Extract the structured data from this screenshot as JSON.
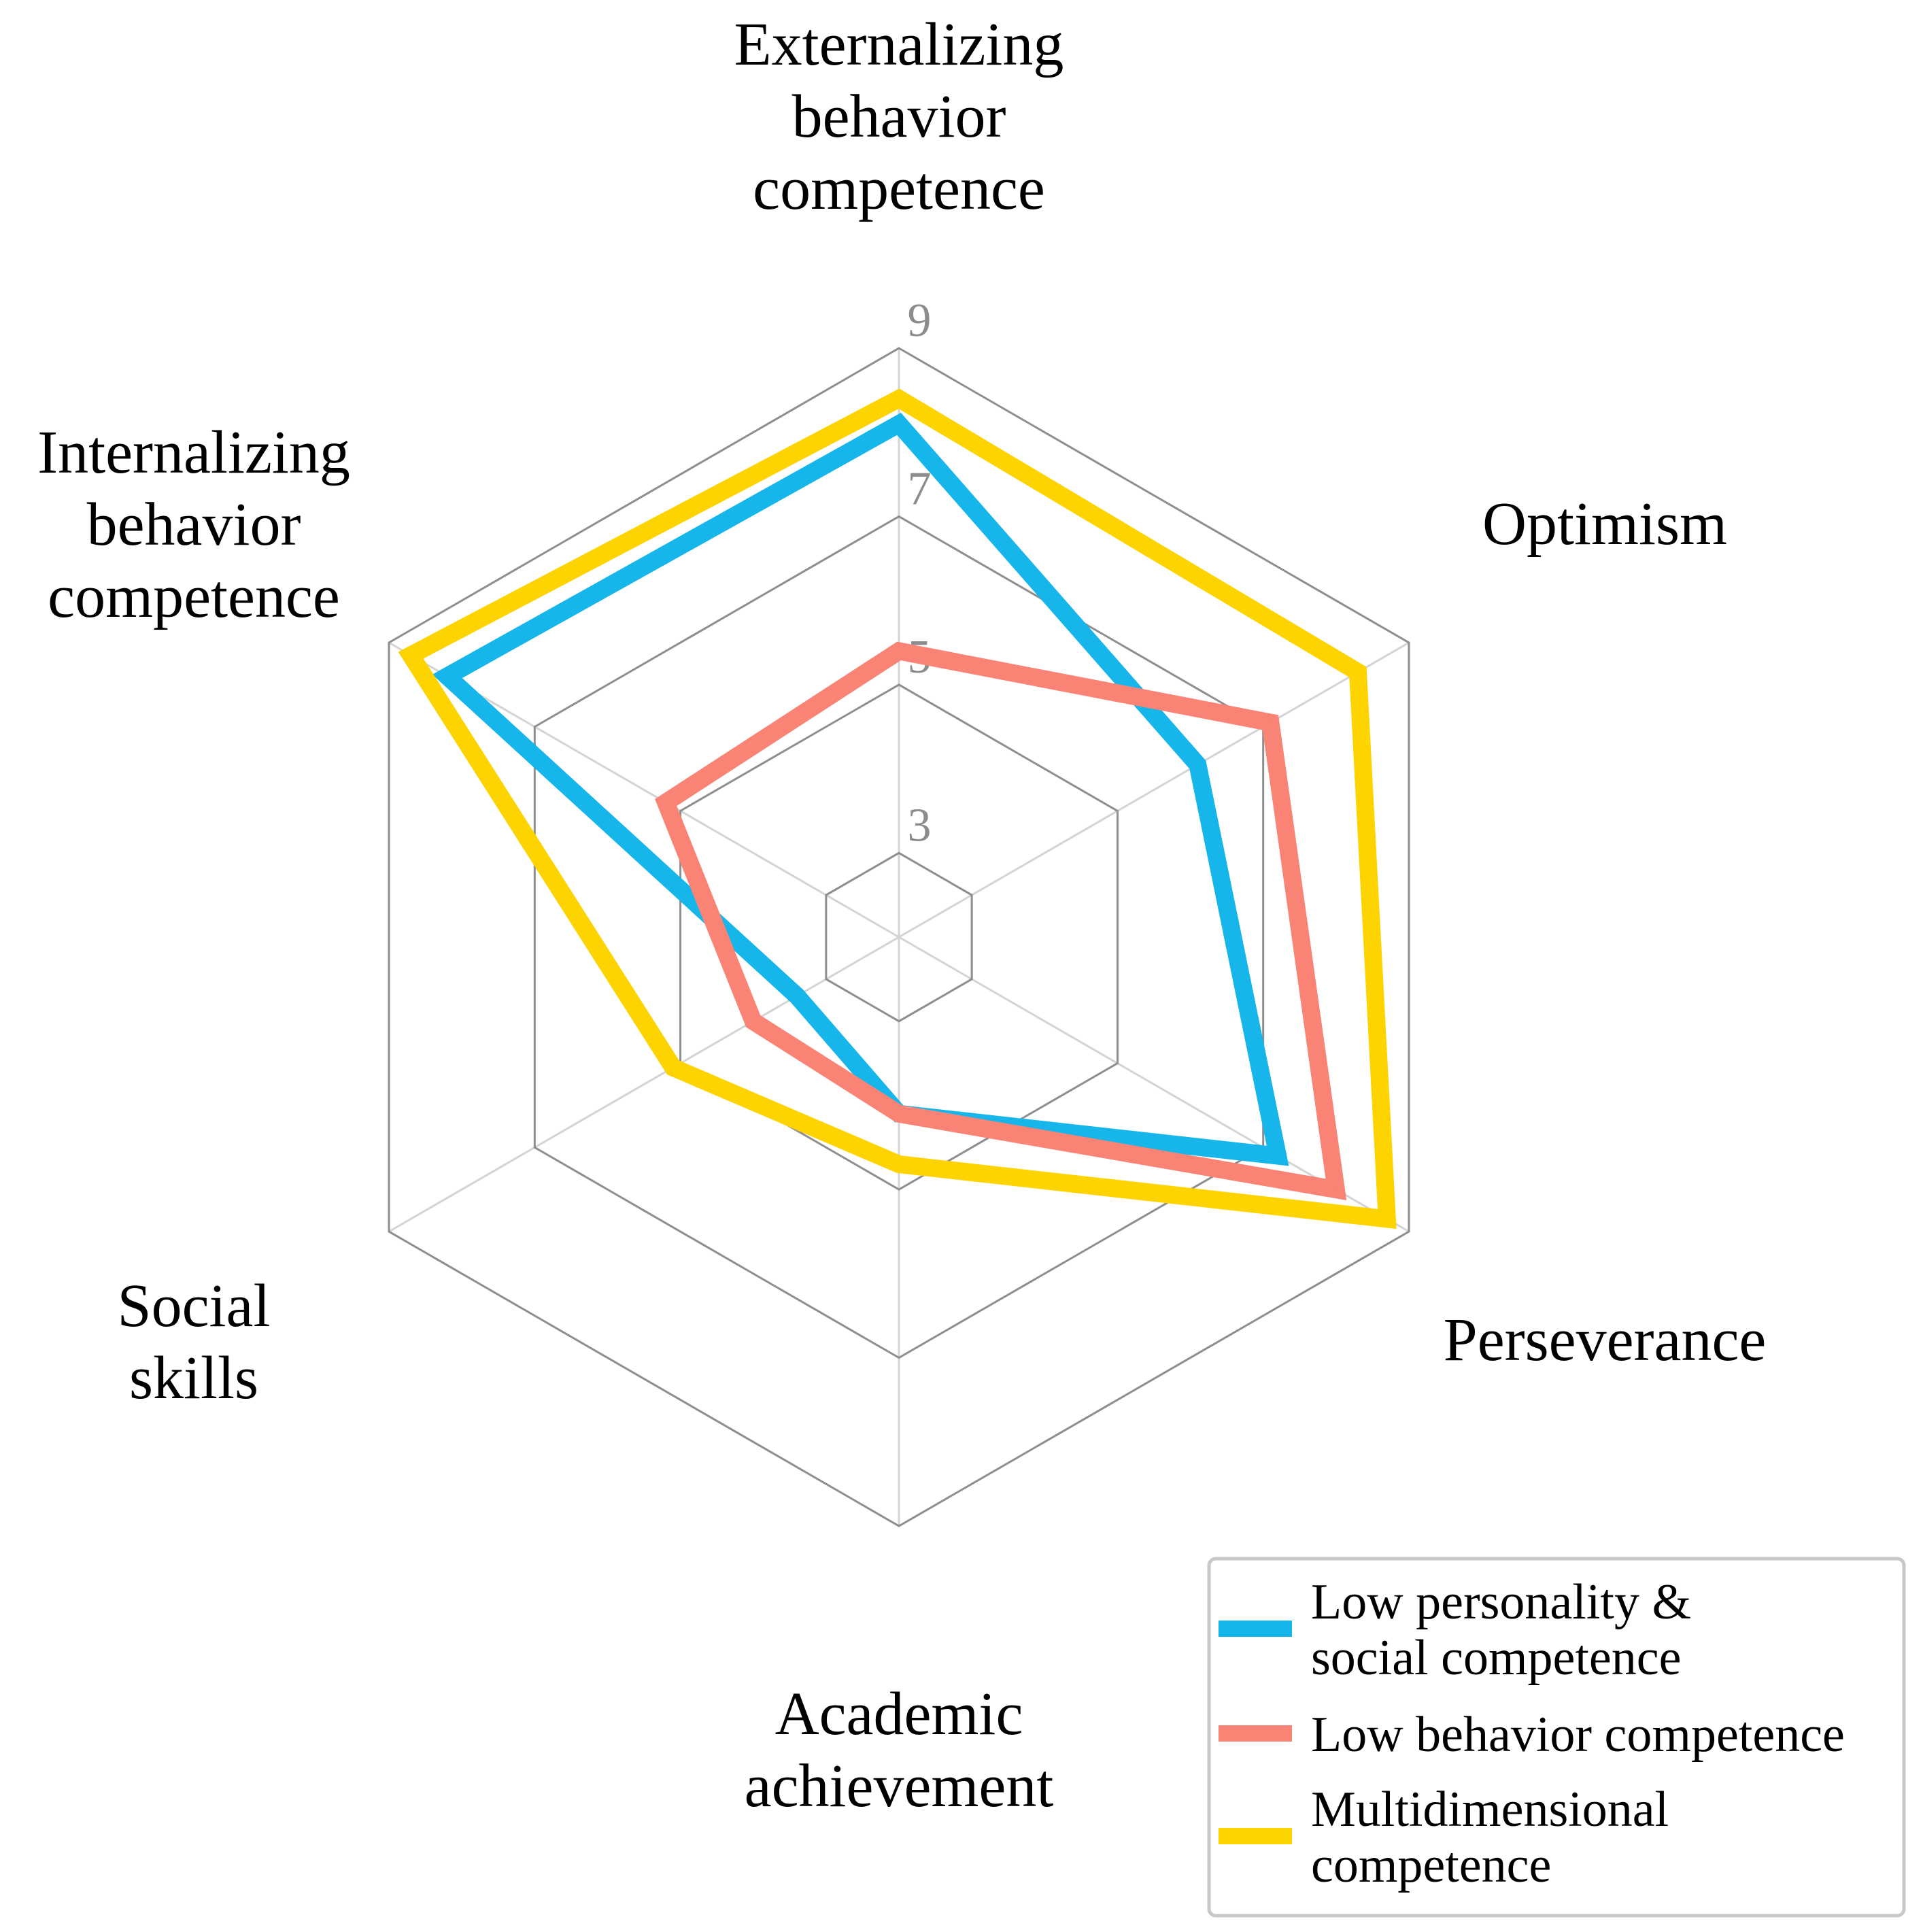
{
  "chart_data": {
    "type": "radar",
    "axes": [
      [
        "Externalizing",
        "behavior",
        "competence"
      ],
      [
        "Optimism"
      ],
      [
        "Perseverance"
      ],
      [
        "Academic",
        "achievement"
      ],
      [
        "Social",
        "skills"
      ],
      [
        "Internalizing",
        "behavior",
        "competence"
      ]
    ],
    "rlim": [
      2,
      9
    ],
    "grid_levels": [
      3,
      5,
      7,
      9
    ],
    "tick_labels": [
      "3",
      "5",
      "7",
      "9"
    ],
    "series": [
      {
        "name_lines": [
          "Low personality &",
          "social competence"
        ],
        "color": "#17b6ea",
        "values": [
          8.1,
          6.1,
          7.2,
          4.1,
          3.4,
          8.2
        ]
      },
      {
        "name_lines": [
          "Low behavior competence"
        ],
        "color": "#f98375",
        "values": [
          5.4,
          7.1,
          8.0,
          4.1,
          4.0,
          5.2
        ]
      },
      {
        "name_lines": [
          "Multidimensional",
          "competence"
        ],
        "color": "#fdd300",
        "values": [
          8.4,
          8.3,
          8.7,
          4.7,
          5.1,
          8.7
        ]
      }
    ],
    "grid": true,
    "legend_position": "bottom-right"
  }
}
